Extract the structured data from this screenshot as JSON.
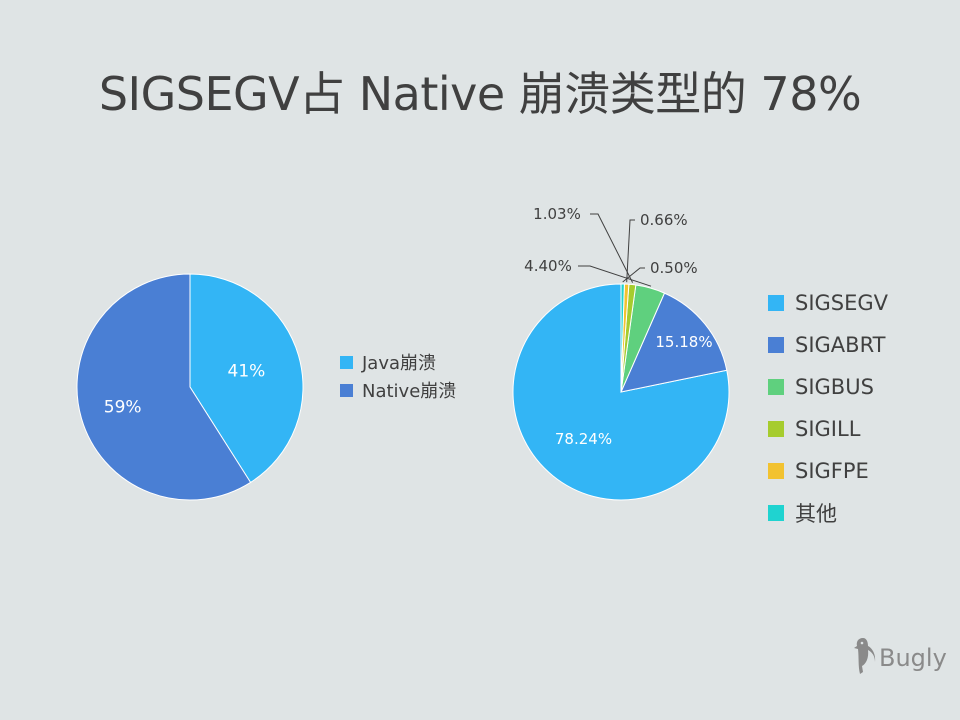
{
  "title": "SIGSEGV占 Native 崩溃类型的 78%",
  "logo": {
    "text": "Bugly",
    "icon": "woodpecker-icon"
  },
  "chart_data": [
    {
      "type": "pie",
      "labels": [
        "Java崩溃",
        "Native崩溃"
      ],
      "values": [
        41,
        59
      ],
      "data_labels": [
        "41%",
        "59%"
      ],
      "colors": [
        "#33b5f5",
        "#4a7fd4"
      ],
      "legend_position": "right"
    },
    {
      "type": "pie",
      "labels": [
        "SIGSEGV",
        "SIGABRT",
        "SIGBUS",
        "SIGILL",
        "SIGFPE",
        "其他"
      ],
      "values": [
        78.24,
        15.18,
        4.4,
        1.03,
        0.66,
        0.5
      ],
      "data_labels": [
        "78.24%",
        "15.18%",
        "4.40%",
        "1.03%",
        "0.66%",
        "0.50%"
      ],
      "colors": [
        "#33b5f5",
        "#4a7fd4",
        "#5fd07e",
        "#a6cc2e",
        "#f2c230",
        "#1fd3d0"
      ],
      "legend_position": "right"
    }
  ]
}
